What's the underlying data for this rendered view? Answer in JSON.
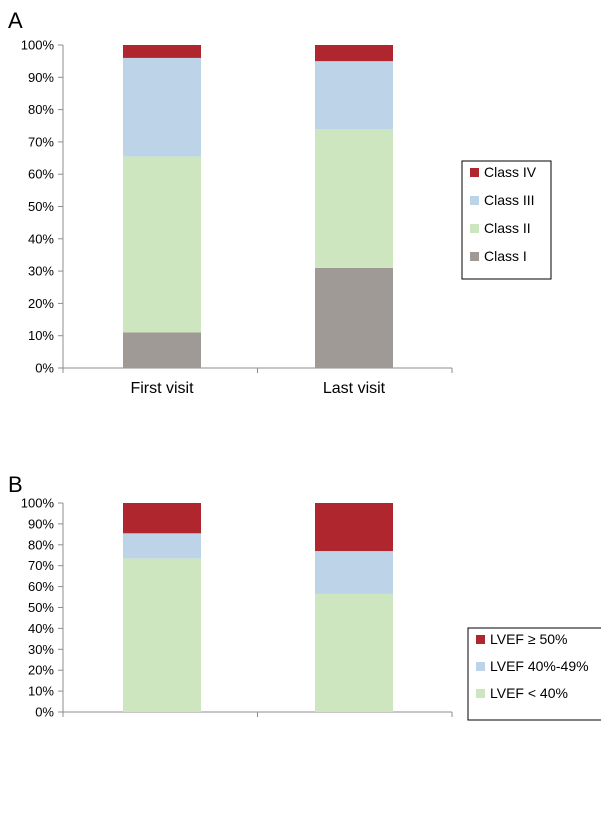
{
  "chart_data": [
    {
      "type": "bar",
      "stacked": true,
      "panel_label": "A",
      "categories": [
        "First visit",
        "Last visit"
      ],
      "series": [
        {
          "name": "Class I",
          "color": "#a09a96",
          "values": [
            11,
            31
          ]
        },
        {
          "name": "Class II",
          "color": "#cde6c0",
          "values": [
            54.5,
            43
          ]
        },
        {
          "name": "Class III",
          "color": "#bcd3e8",
          "values": [
            30.5,
            21
          ]
        },
        {
          "name": "Class IV",
          "color": "#b0262e",
          "values": [
            4,
            5
          ]
        }
      ],
      "ylim": [
        0,
        100
      ],
      "yticks": [
        "0%",
        "10%",
        "20%",
        "30%",
        "40%",
        "50%",
        "60%",
        "70%",
        "80%",
        "90%",
        "100%"
      ],
      "legend": "right",
      "grid": false
    },
    {
      "type": "bar",
      "stacked": true,
      "panel_label": "B",
      "categories": [
        "",
        ""
      ],
      "series": [
        {
          "name": "LVEF < 40%",
          "color": "#cde6c0",
          "values": [
            73.5,
            56.5
          ]
        },
        {
          "name": "LVEF 40%-49%",
          "color": "#bcd3e8",
          "values": [
            12,
            20.5
          ]
        },
        {
          "name": "LVEF ≥ 50%",
          "color": "#b0262e",
          "values": [
            14.5,
            23
          ]
        }
      ],
      "ylim": [
        0,
        100
      ],
      "yticks": [
        "0%",
        "10%",
        "20%",
        "30%",
        "40%",
        "50%",
        "60%",
        "70%",
        "80%",
        "90%",
        "100%"
      ],
      "legend": "right",
      "grid": false
    }
  ]
}
